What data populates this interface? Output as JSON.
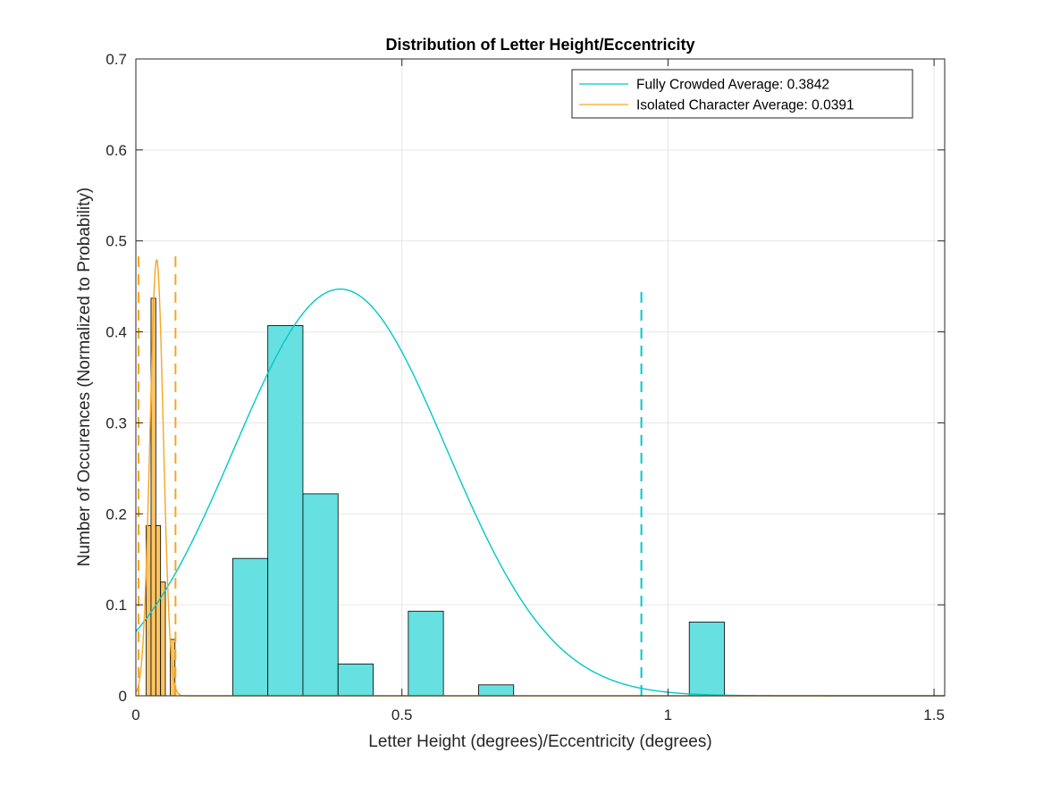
{
  "chart_data": {
    "type": "bar",
    "title": "Distribution of Letter Height/Eccentricity",
    "xlabel": "Letter Height (degrees)/Eccentricity (degrees)",
    "ylabel": "Number of Occurences (Normalized to Probability)",
    "xlim": [
      0,
      1.52
    ],
    "ylim": [
      0,
      0.7
    ],
    "xticks": [
      0,
      0.5,
      1,
      1.5
    ],
    "xtick_labels": [
      "0",
      "0.5",
      "1",
      "1.5"
    ],
    "yticks": [
      0,
      0.1,
      0.2,
      0.3,
      0.4,
      0.5,
      0.6,
      0.7
    ],
    "ytick_labels": [
      "0",
      "0.1",
      "0.2",
      "0.3",
      "0.4",
      "0.5",
      "0.6",
      "0.7"
    ],
    "grid": true,
    "legend_position": "top-right",
    "series": [
      {
        "name": "Fully Crowded Average: 0.3842",
        "color": "#00c8c8",
        "bar_fill": "#66e0e0",
        "mean": 0.3842,
        "sigma": 0.2,
        "peak": 0.447,
        "average_marker_x": 0.95,
        "average_marker_height": 0.45,
        "bins": [
          {
            "x0": 0.182,
            "x1": 0.248,
            "value": 0.151
          },
          {
            "x0": 0.248,
            "x1": 0.314,
            "value": 0.407
          },
          {
            "x0": 0.314,
            "x1": 0.38,
            "value": 0.222
          },
          {
            "x0": 0.38,
            "x1": 0.446,
            "value": 0.035
          },
          {
            "x0": 0.446,
            "x1": 0.512,
            "value": 0.0
          },
          {
            "x0": 0.512,
            "x1": 0.578,
            "value": 0.093
          },
          {
            "x0": 0.578,
            "x1": 0.644,
            "value": 0.0
          },
          {
            "x0": 0.644,
            "x1": 0.71,
            "value": 0.012
          },
          {
            "x0": 1.04,
            "x1": 1.106,
            "value": 0.081
          }
        ]
      },
      {
        "name": "Isolated Character Average: 0.0391",
        "color": "#f5a623",
        "bar_fill": "#fbc565",
        "mean": 0.0391,
        "sigma": 0.0125,
        "peak": 0.48,
        "average_lines_x": [
          0.005,
          0.0745
        ],
        "average_lines_height": 0.49,
        "bins": [
          {
            "x0": 0.0195,
            "x1": 0.0285,
            "value": 0.187
          },
          {
            "x0": 0.0285,
            "x1": 0.0375,
            "value": 0.437
          },
          {
            "x0": 0.0375,
            "x1": 0.0465,
            "value": 0.187
          },
          {
            "x0": 0.0465,
            "x1": 0.0555,
            "value": 0.125
          },
          {
            "x0": 0.0555,
            "x1": 0.0645,
            "value": 0.0
          },
          {
            "x0": 0.0645,
            "x1": 0.0735,
            "value": 0.062
          }
        ]
      }
    ]
  }
}
